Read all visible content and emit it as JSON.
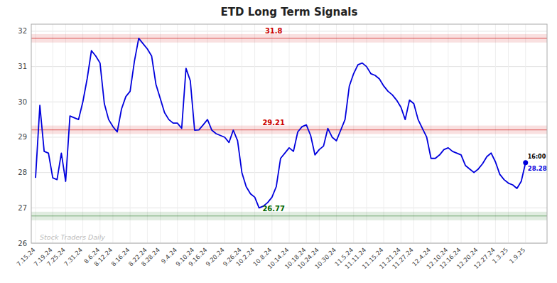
{
  "chart_data": {
    "type": "line",
    "title": "ETD Long Term Signals",
    "color": "#0000dd",
    "grid": true,
    "ylim": [
      26.0,
      32.2
    ],
    "yticks": [
      26,
      27,
      28,
      29,
      30,
      31,
      32
    ],
    "xlim": [
      -1,
      119
    ],
    "categories": [
      "7.15.24",
      null,
      null,
      null,
      "7.19.24",
      null,
      null,
      "7.25.24",
      null,
      null,
      null,
      "7.31.24",
      null,
      null,
      null,
      "8.6.24",
      null,
      null,
      "8.12.24",
      null,
      null,
      null,
      "8.16.24",
      null,
      null,
      null,
      "8.22.24",
      null,
      null,
      "8.28.24",
      null,
      null,
      null,
      "9.4.24",
      null,
      null,
      null,
      "9.10.24",
      null,
      null,
      "9.16.24",
      null,
      null,
      null,
      "9.20.24",
      null,
      null,
      null,
      "9.26.24",
      null,
      null,
      "10.2.24",
      null,
      null,
      null,
      "10.8.24",
      null,
      null,
      null,
      "10.14.24",
      null,
      null,
      null,
      "10.18.24",
      null,
      null,
      "10.24.24",
      null,
      null,
      null,
      "10.30.24",
      null,
      null,
      null,
      "11.5.24",
      null,
      null,
      "11.11.24",
      null,
      null,
      null,
      "11.15.24",
      null,
      null,
      null,
      "11.21.24",
      null,
      null,
      "11.27.24",
      null,
      null,
      null,
      "12.4.24",
      null,
      null,
      null,
      "12.10.24",
      null,
      null,
      "12.16.24",
      null,
      null,
      null,
      "12.20.24",
      null,
      null,
      null,
      "12.27.24",
      null,
      null,
      "1.3.25",
      null,
      null,
      null,
      "1.9.25"
    ],
    "values": [
      27.85,
      29.9,
      28.6,
      28.55,
      27.85,
      27.8,
      28.55,
      27.75,
      29.6,
      29.55,
      29.5,
      30.0,
      30.65,
      31.45,
      31.3,
      31.1,
      29.95,
      29.5,
      29.3,
      29.15,
      29.8,
      30.15,
      30.3,
      31.15,
      31.8,
      31.65,
      31.5,
      31.3,
      30.5,
      30.1,
      29.7,
      29.5,
      29.4,
      29.4,
      29.25,
      30.95,
      30.6,
      29.2,
      29.21,
      29.35,
      29.5,
      29.2,
      29.1,
      29.05,
      29.0,
      28.85,
      29.2,
      28.9,
      28.0,
      27.6,
      27.4,
      27.3,
      27.0,
      27.05,
      27.15,
      27.3,
      27.6,
      28.4,
      28.55,
      28.7,
      28.6,
      29.15,
      29.3,
      29.35,
      29.05,
      28.5,
      28.65,
      28.75,
      29.25,
      29.0,
      28.9,
      29.2,
      29.5,
      30.45,
      30.8,
      31.05,
      31.1,
      31.0,
      30.8,
      30.75,
      30.65,
      30.45,
      30.3,
      30.2,
      30.05,
      29.85,
      29.5,
      30.05,
      29.95,
      29.5,
      29.25,
      29.0,
      28.4,
      28.4,
      28.5,
      28.65,
      28.7,
      28.6,
      28.55,
      28.5,
      28.2,
      28.1,
      28.0,
      28.1,
      28.25,
      28.45,
      28.55,
      28.3,
      27.95,
      27.8,
      27.7,
      27.65,
      27.55,
      27.75,
      28.28
    ],
    "bands": [
      {
        "value": 31.8,
        "color": "#cc0000"
      },
      {
        "value": 29.21,
        "color": "#cc0000"
      },
      {
        "value": 26.77,
        "color": "#006600"
      }
    ],
    "end_label": {
      "time": "16:00",
      "value": 28.28
    },
    "watermark": "Stock Traders Daily"
  }
}
